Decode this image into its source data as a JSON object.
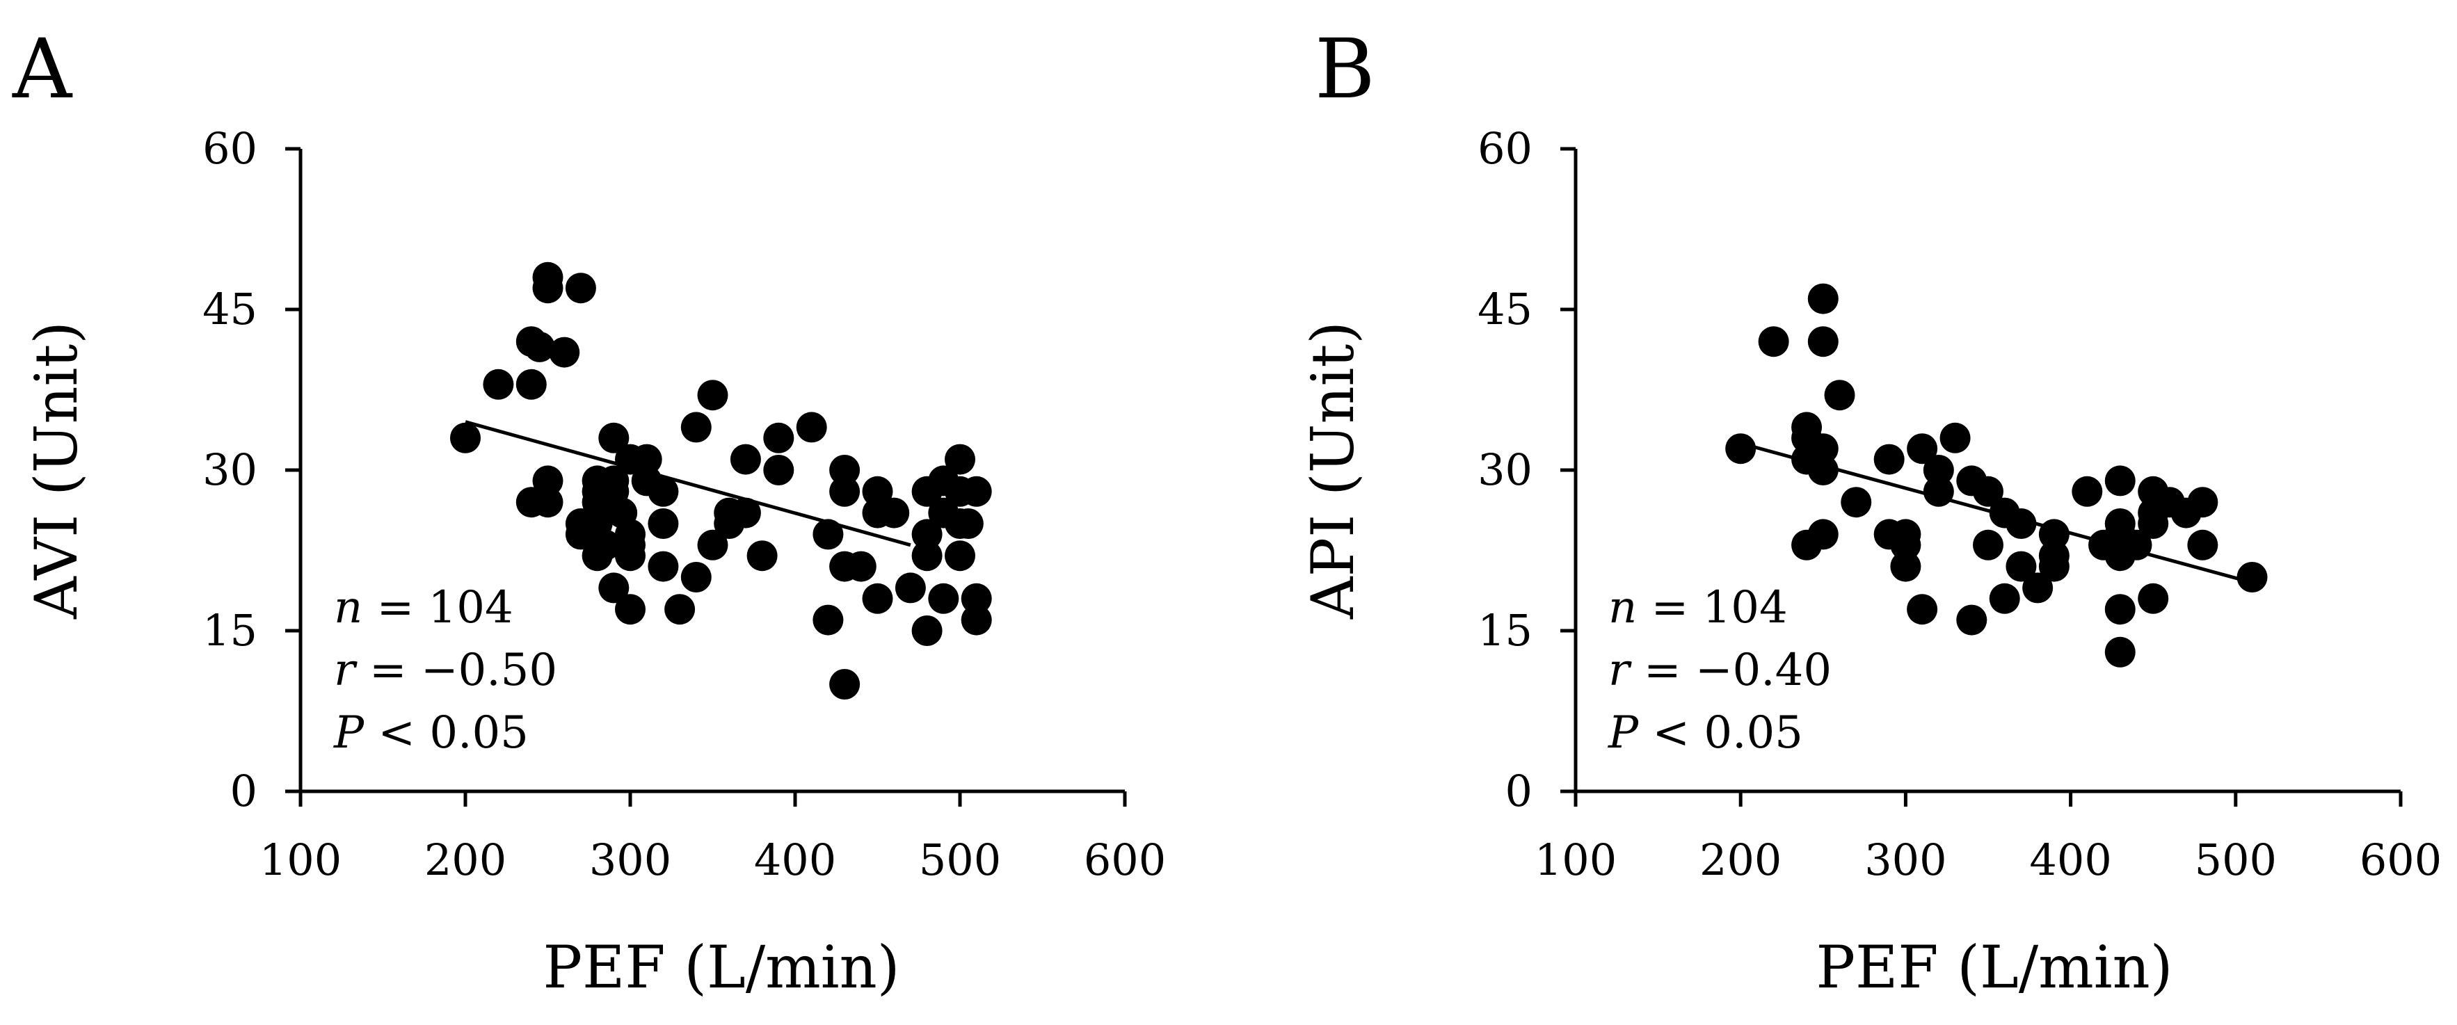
{
  "figure": {
    "panels": [
      "A",
      "B"
    ]
  },
  "chart_data": [
    {
      "panel": "A",
      "type": "scatter",
      "xlabel": "PEF (L/min)",
      "ylabel": "AVI (Unit)",
      "xlim": [
        100,
        600
      ],
      "ylim": [
        0,
        60
      ],
      "xticks": [
        "100",
        "200",
        "300",
        "400",
        "500",
        "600"
      ],
      "yticks": [
        "0",
        "15",
        "30",
        "45",
        "60"
      ],
      "stats": {
        "n_label": "n",
        "n_value": " = 104",
        "r_label": "r",
        "r_value": " = −0.50",
        "p_label": "P",
        "p_value": " < 0.05"
      },
      "trendline": {
        "x": [
          200,
          470
        ],
        "y": [
          34.5,
          23.0
        ]
      },
      "points": [
        [
          200,
          33
        ],
        [
          220,
          38
        ],
        [
          240,
          42
        ],
        [
          240,
          38
        ],
        [
          240,
          27
        ],
        [
          245,
          41.5
        ],
        [
          250,
          48
        ],
        [
          250,
          47
        ],
        [
          250,
          29
        ],
        [
          250,
          27
        ],
        [
          260,
          41
        ],
        [
          270,
          47
        ],
        [
          270,
          24
        ],
        [
          270,
          25
        ],
        [
          280,
          29
        ],
        [
          280,
          28
        ],
        [
          280,
          27
        ],
        [
          280,
          25
        ],
        [
          280,
          22
        ],
        [
          285,
          23
        ],
        [
          290,
          33
        ],
        [
          290,
          29
        ],
        [
          290,
          28
        ],
        [
          290,
          19
        ],
        [
          295,
          26
        ],
        [
          300,
          31
        ],
        [
          300,
          24
        ],
        [
          300,
          23
        ],
        [
          300,
          22
        ],
        [
          300,
          17
        ],
        [
          310,
          31
        ],
        [
          310,
          29
        ],
        [
          320,
          28
        ],
        [
          320,
          25
        ],
        [
          320,
          21
        ],
        [
          330,
          17
        ],
        [
          340,
          34
        ],
        [
          340,
          20
        ],
        [
          350,
          37
        ],
        [
          350,
          23
        ],
        [
          360,
          26
        ],
        [
          360,
          25
        ],
        [
          370,
          31
        ],
        [
          370,
          26
        ],
        [
          380,
          22
        ],
        [
          390,
          33
        ],
        [
          390,
          30
        ],
        [
          410,
          34
        ],
        [
          420,
          24
        ],
        [
          420,
          16
        ],
        [
          430,
          30
        ],
        [
          430,
          28
        ],
        [
          430,
          21
        ],
        [
          430,
          10
        ],
        [
          440,
          21
        ],
        [
          450,
          28
        ],
        [
          450,
          26
        ],
        [
          450,
          18
        ],
        [
          460,
          26
        ],
        [
          470,
          19
        ],
        [
          480,
          28
        ],
        [
          480,
          24
        ],
        [
          480,
          22
        ],
        [
          480,
          15
        ],
        [
          490,
          29
        ],
        [
          490,
          26
        ],
        [
          490,
          18
        ],
        [
          500,
          31
        ],
        [
          500,
          28
        ],
        [
          500,
          25
        ],
        [
          500,
          22
        ],
        [
          505,
          25
        ],
        [
          510,
          28
        ],
        [
          510,
          18
        ],
        [
          510,
          16
        ]
      ]
    },
    {
      "panel": "B",
      "type": "scatter",
      "xlabel": "PEF (L/min)",
      "ylabel": "API (Unit)",
      "xlim": [
        100,
        600
      ],
      "ylim": [
        0,
        60
      ],
      "xticks": [
        "100",
        "200",
        "300",
        "400",
        "500",
        "600"
      ],
      "yticks": [
        "0",
        "15",
        "30",
        "45",
        "60"
      ],
      "stats": {
        "n_label": "n",
        "n_value": " = 104",
        "r_label": "r",
        "r_value": " = −0.40",
        "p_label": "P",
        "p_value": " < 0.05"
      },
      "trendline": {
        "x": [
          200,
          510
        ],
        "y": [
          32.5,
          19.5
        ]
      },
      "points": [
        [
          200,
          32
        ],
        [
          220,
          42
        ],
        [
          240,
          34
        ],
        [
          240,
          33
        ],
        [
          240,
          31
        ],
        [
          240,
          23
        ],
        [
          250,
          46
        ],
        [
          250,
          42
        ],
        [
          250,
          32
        ],
        [
          250,
          30
        ],
        [
          250,
          24
        ],
        [
          260,
          37
        ],
        [
          270,
          27
        ],
        [
          290,
          31
        ],
        [
          290,
          24
        ],
        [
          300,
          24
        ],
        [
          300,
          23
        ],
        [
          300,
          21
        ],
        [
          310,
          32
        ],
        [
          310,
          17
        ],
        [
          320,
          30
        ],
        [
          320,
          28
        ],
        [
          330,
          33
        ],
        [
          340,
          29
        ],
        [
          340,
          16
        ],
        [
          350,
          28
        ],
        [
          350,
          23
        ],
        [
          360,
          26
        ],
        [
          360,
          18
        ],
        [
          370,
          25
        ],
        [
          370,
          21
        ],
        [
          380,
          19
        ],
        [
          390,
          24
        ],
        [
          390,
          22
        ],
        [
          390,
          21
        ],
        [
          410,
          28
        ],
        [
          420,
          23
        ],
        [
          430,
          29
        ],
        [
          430,
          25
        ],
        [
          430,
          24
        ],
        [
          430,
          22
        ],
        [
          430,
          17
        ],
        [
          430,
          13
        ],
        [
          440,
          23
        ],
        [
          450,
          28
        ],
        [
          450,
          26
        ],
        [
          450,
          25
        ],
        [
          450,
          18
        ],
        [
          460,
          27
        ],
        [
          470,
          26
        ],
        [
          480,
          27
        ],
        [
          480,
          23
        ],
        [
          510,
          20
        ]
      ]
    }
  ]
}
